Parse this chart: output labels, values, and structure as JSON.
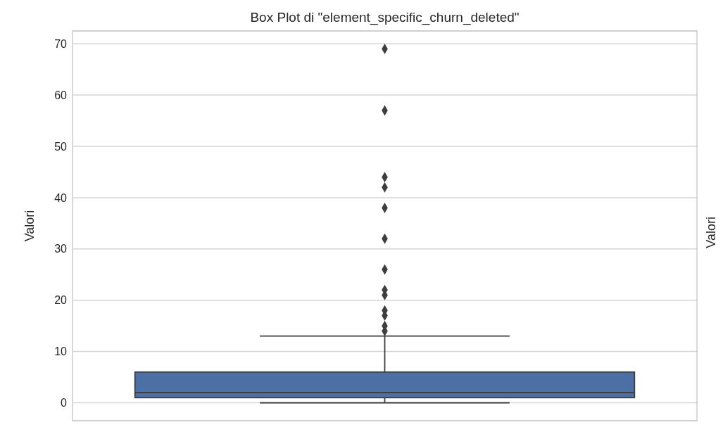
{
  "chart_data": {
    "type": "box",
    "title": "Box Plot di \"element_specific_churn_deleted\"",
    "ylabel": "Valori",
    "categories": [
      null
    ],
    "color": "#4c6fa5",
    "boxes": [
      {
        "low": 0,
        "q1": 1,
        "median": 2,
        "q3": 6,
        "high": 13,
        "outliers": [
          14,
          15,
          17,
          18,
          21,
          22,
          26,
          32,
          38,
          42,
          44,
          57,
          69
        ]
      }
    ],
    "ylim": [
      -3.5,
      72.5
    ],
    "yticks": [
      0,
      10,
      20,
      30,
      40,
      50,
      60,
      70
    ],
    "grid": "y",
    "marker": "diamond",
    "annotations": [
      "Valori"
    ]
  }
}
